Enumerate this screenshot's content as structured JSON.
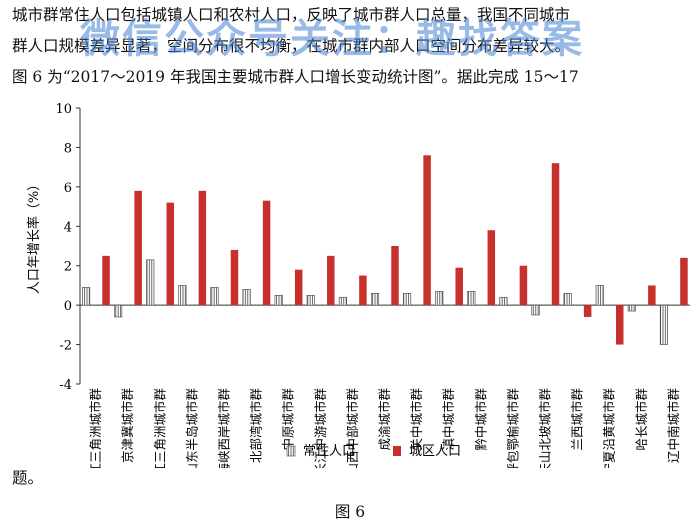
{
  "document": {
    "paragraph_lines": [
      "城市群常住人口包括城镇人口和农村人口，反映了城市群人口总量，我国不同城市",
      "群人口规模差异显著，空间分布很不均衡，在城市群内部人口空间分布差异较大。",
      "图 6 为“2017～2019 年我国主要城市群人口增长变动统计图”。据此完成 15～17"
    ],
    "paragraph_tail": "题。",
    "figure_caption": "图 6",
    "watermark": "微信公众号关注：趣找答案"
  },
  "colors": {
    "bar_city": "#c8302c",
    "bar_resident": "#444444",
    "axis": "#333333"
  },
  "chart_data": {
    "type": "bar",
    "ylabel": "人口年增长率（%）",
    "ylim": [
      -4,
      10
    ],
    "yticks": [
      -4,
      -2,
      0,
      2,
      4,
      6,
      8,
      10
    ],
    "grid": false,
    "legend_position": "bottom-center",
    "categories": [
      "长江三角洲城市群",
      "京津冀城市群",
      "珠江三角洲城市群",
      "山东半岛城市群",
      "海峡西岸城市群",
      "北部湾城市群",
      "中原城市群",
      "长江中游城市群",
      "山西中部城市群",
      "成渝城市群",
      "关中城市群",
      "滇中城市群",
      "黔中城市群",
      "呼包鄂榆城市群",
      "天山北坡城市群",
      "兰西城市群",
      "宁夏沿黄城市群",
      "哈长城市群",
      "辽中南城市群"
    ],
    "series": [
      {
        "name": "常住人口",
        "pattern": "hatched",
        "values": [
          0.9,
          -0.6,
          2.3,
          1.0,
          0.9,
          0.8,
          0.5,
          0.5,
          0.4,
          0.6,
          0.6,
          0.7,
          0.7,
          0.4,
          -0.5,
          0.6,
          1.0,
          -0.3,
          -2.0
        ]
      },
      {
        "name": "城区人口",
        "pattern": "solid",
        "values": [
          2.5,
          5.8,
          5.2,
          5.8,
          2.8,
          5.3,
          1.8,
          2.5,
          1.5,
          3.0,
          7.6,
          1.9,
          3.8,
          2.0,
          7.2,
          -0.6,
          -2.0,
          1.0,
          2.4
        ]
      }
    ]
  }
}
